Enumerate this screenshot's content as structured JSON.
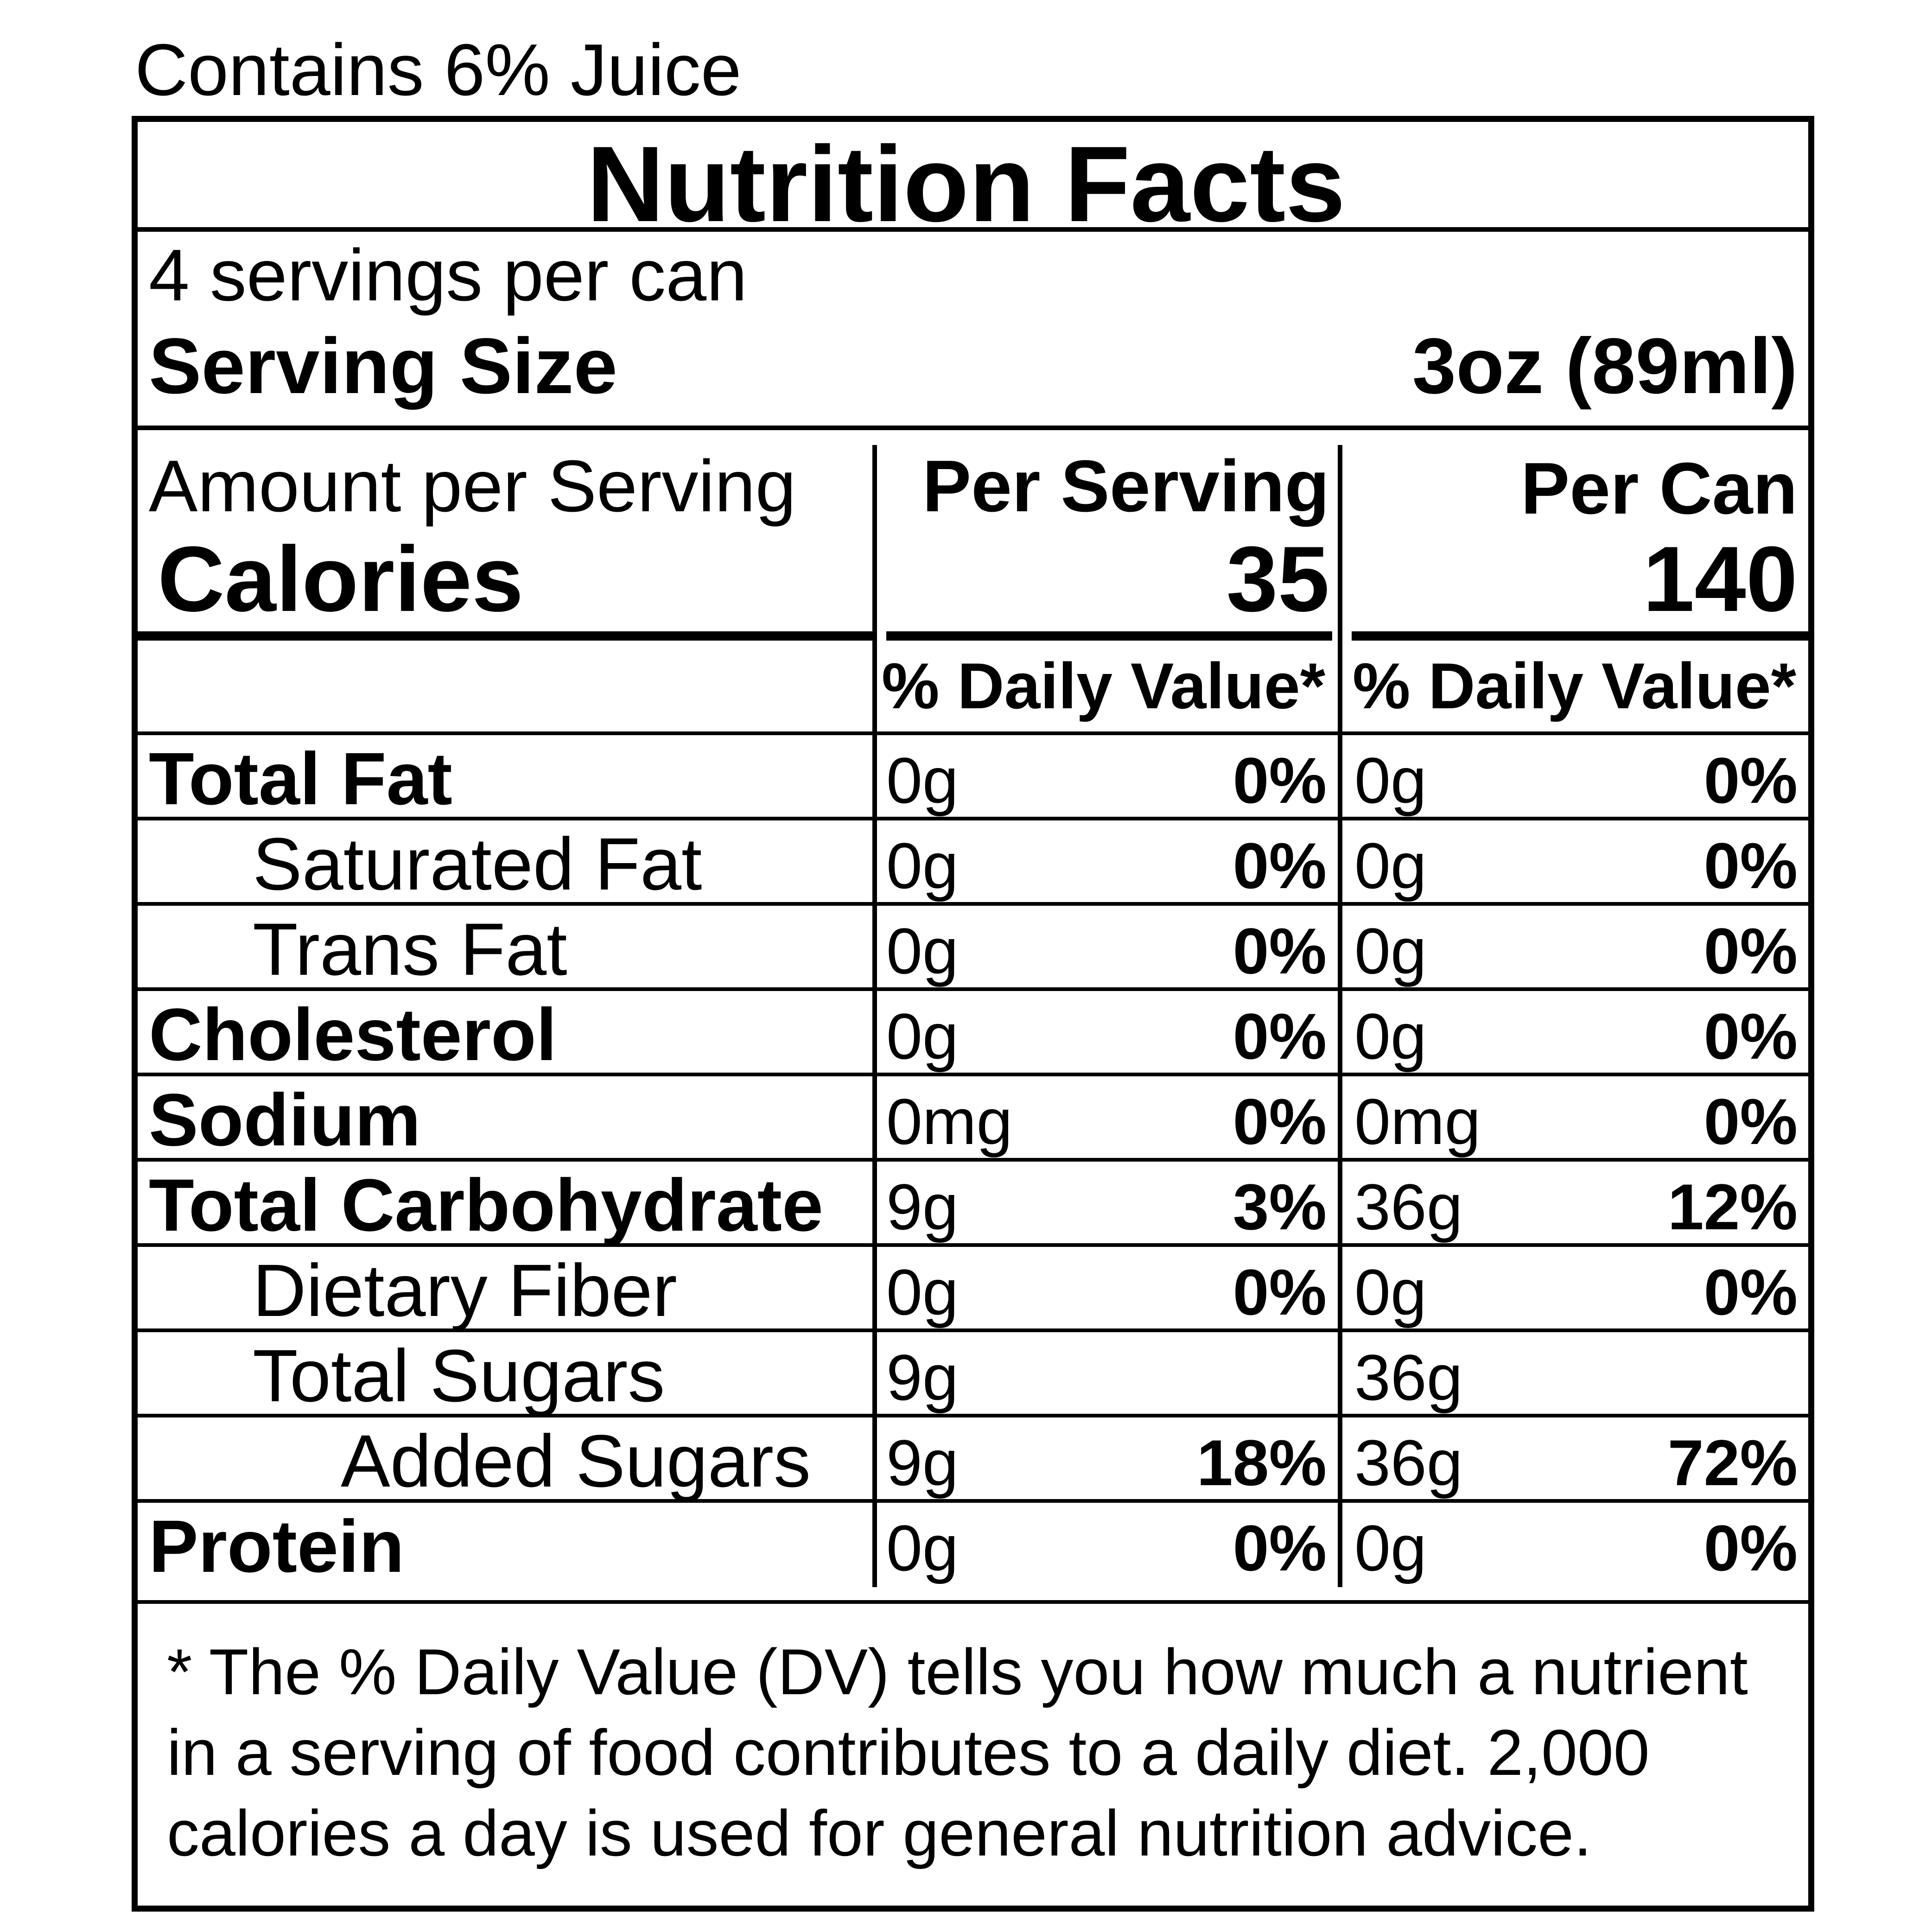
{
  "header_note": "Contains 6% Juice",
  "title": "Nutrition Facts",
  "servings_per_container": "4 servings per can",
  "serving_size": {
    "label": "Serving Size",
    "value": "3oz (89ml)"
  },
  "amount_label": "Amount per Serving",
  "calories": {
    "label": "Calories",
    "per_serving": "35",
    "per_can": "140"
  },
  "columns": {
    "per_serving": "Per Serving",
    "per_can": "Per Can",
    "daily_value": "% Daily Value*"
  },
  "nutrients": [
    {
      "name": "Total Fat",
      "bold": true,
      "indent": 0,
      "serving_amount": "0g",
      "serving_dv": "0%",
      "can_amount": "0g",
      "can_dv": "0%"
    },
    {
      "name": "Saturated Fat",
      "bold": false,
      "indent": 1,
      "serving_amount": "0g",
      "serving_dv": "0%",
      "can_amount": "0g",
      "can_dv": "0%"
    },
    {
      "name": "Trans Fat",
      "bold": false,
      "indent": 1,
      "serving_amount": "0g",
      "serving_dv": "0%",
      "can_amount": "0g",
      "can_dv": "0%"
    },
    {
      "name": "Cholesterol",
      "bold": true,
      "indent": 0,
      "serving_amount": "0g",
      "serving_dv": "0%",
      "can_amount": "0g",
      "can_dv": "0%"
    },
    {
      "name": "Sodium",
      "bold": true,
      "indent": 0,
      "serving_amount": "0mg",
      "serving_dv": "0%",
      "can_amount": "0mg",
      "can_dv": "0%"
    },
    {
      "name": "Total Carbohydrate",
      "bold": true,
      "indent": 0,
      "serving_amount": "9g",
      "serving_dv": "3%",
      "can_amount": "36g",
      "can_dv": "12%"
    },
    {
      "name": "Dietary Fiber",
      "bold": false,
      "indent": 1,
      "serving_amount": "0g",
      "serving_dv": "0%",
      "can_amount": "0g",
      "can_dv": "0%"
    },
    {
      "name": "Total Sugars",
      "bold": false,
      "indent": 1,
      "serving_amount": "9g",
      "serving_dv": "",
      "can_amount": "36g",
      "can_dv": ""
    },
    {
      "name": "Added Sugars",
      "bold": false,
      "indent": 2,
      "serving_amount": "9g",
      "serving_dv": "18%",
      "can_amount": "36g",
      "can_dv": "72%"
    },
    {
      "name": "Protein",
      "bold": true,
      "indent": 0,
      "serving_amount": "0g",
      "serving_dv": "0%",
      "can_amount": "0g",
      "can_dv": "0%"
    }
  ],
  "footnote": "* The % Daily Value (DV) tells you how much a nutrient in a serving of food contributes to a daily diet. 2,000 calories a day is used for general nutrition advice."
}
